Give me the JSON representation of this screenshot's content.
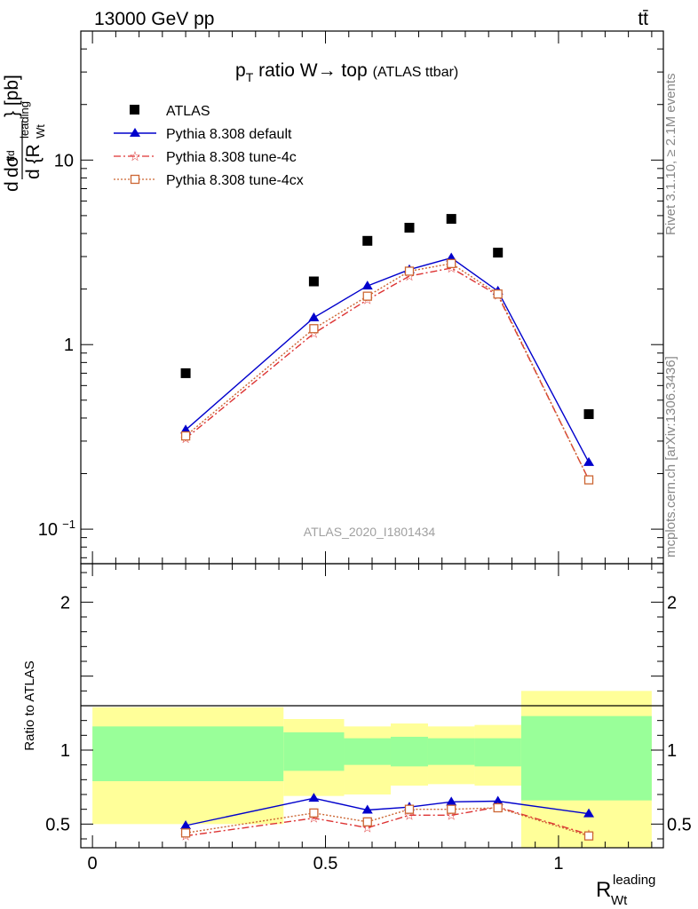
{
  "header": {
    "energy_label": "13000 GeV pp",
    "process_label": "tt̄"
  },
  "side_labels": {
    "rivet": "Rivet 3.1.10, ≥ 2.1M events",
    "mcplots": "mcplots.cern.ch [arXiv:1306.3436]"
  },
  "chart_data": [
    {
      "type": "scatter",
      "title_main": "p",
      "title_sub": "T",
      "title_rest": " ratio W→ top",
      "title_small": "(ATLAS ttbar)",
      "analysis_label": "ATLAS_2020_I1801434",
      "ylabel": "d σ / d {R_Wt^leading} [pb]",
      "yscale": "log",
      "ylim": [
        0.065,
        50
      ],
      "y_ticks": [
        {
          "value": 0.1,
          "base": "10",
          "exp": "−1"
        },
        {
          "value": 1,
          "base": "1",
          "exp": ""
        },
        {
          "value": 10,
          "base": "10",
          "exp": ""
        }
      ],
      "xlim": [
        -0.025,
        1.225
      ],
      "legend_position": "top-left",
      "x": [
        0.2,
        0.475,
        0.59,
        0.68,
        0.77,
        0.87,
        1.065
      ],
      "series": [
        {
          "name": "ATLAS",
          "color": "#000000",
          "marker": "square",
          "line": "none",
          "values": [
            0.7,
            2.2,
            3.65,
            4.3,
            4.8,
            3.15,
            0.42
          ]
        },
        {
          "name": "Pythia 8.308 default",
          "color": "#0000cc",
          "marker": "triangle",
          "line": "solid",
          "values": [
            0.345,
            1.4,
            2.08,
            2.55,
            2.95,
            1.95,
            0.23
          ]
        },
        {
          "name": "Pythia 8.308 tune-4c",
          "color": "#dd3333",
          "marker": "star",
          "line": "dashdot",
          "values": [
            0.31,
            1.15,
            1.75,
            2.35,
            2.6,
            1.85,
            0.185
          ]
        },
        {
          "name": "Pythia 8.308 tune-4cx",
          "color": "#cc6633",
          "marker": "open-square",
          "line": "dotted",
          "values": [
            0.32,
            1.22,
            1.83,
            2.5,
            2.75,
            1.88,
            0.185
          ]
        }
      ]
    },
    {
      "type": "line",
      "ylabel": "Ratio to ATLAS",
      "xlabel_main": "R",
      "xlabel_sub": "Wt",
      "xlabel_sup": "leading",
      "ylim": [
        0.34,
        2.26
      ],
      "xlim": [
        -0.025,
        1.225
      ],
      "y_ticks": [
        {
          "value": 0.5,
          "label": "0.5"
        },
        {
          "value": 1,
          "label": "1"
        },
        {
          "value": 2,
          "label": "2"
        }
      ],
      "x_ticks": [
        {
          "value": 0,
          "label": "0"
        },
        {
          "value": 0.5,
          "label": "0.5"
        },
        {
          "value": 1,
          "label": "1"
        }
      ],
      "bands": {
        "bin_edges": [
          0,
          0.41,
          0.54,
          0.64,
          0.72,
          0.82,
          0.92,
          1.2
        ],
        "yellow_low": [
          0.5,
          0.69,
          0.7,
          0.76,
          0.77,
          0.76,
          0.34
        ],
        "yellow_high": [
          1.29,
          1.21,
          1.16,
          1.18,
          1.16,
          1.17,
          1.4
        ],
        "green_low": [
          0.79,
          0.86,
          0.9,
          0.89,
          0.9,
          0.89,
          0.66
        ],
        "green_high": [
          1.16,
          1.12,
          1.08,
          1.09,
          1.08,
          1.08,
          1.23
        ]
      },
      "x": [
        0.2,
        0.475,
        0.59,
        0.68,
        0.77,
        0.87,
        1.065
      ],
      "series": [
        {
          "name": "Pythia 8.308 default",
          "color": "#0000cc",
          "marker": "triangle",
          "line": "solid",
          "values": [
            0.49,
            0.675,
            0.595,
            0.615,
            0.65,
            0.655,
            0.57
          ]
        },
        {
          "name": "Pythia 8.308 tune-4c",
          "color": "#dd3333",
          "marker": "star",
          "line": "dashdot",
          "values": [
            0.42,
            0.54,
            0.475,
            0.56,
            0.56,
            0.615,
            0.43
          ]
        },
        {
          "name": "Pythia 8.308 tune-4cx",
          "color": "#cc6633",
          "marker": "open-square",
          "line": "dotted",
          "values": [
            0.44,
            0.575,
            0.515,
            0.6,
            0.6,
            0.61,
            0.42
          ]
        }
      ]
    }
  ]
}
